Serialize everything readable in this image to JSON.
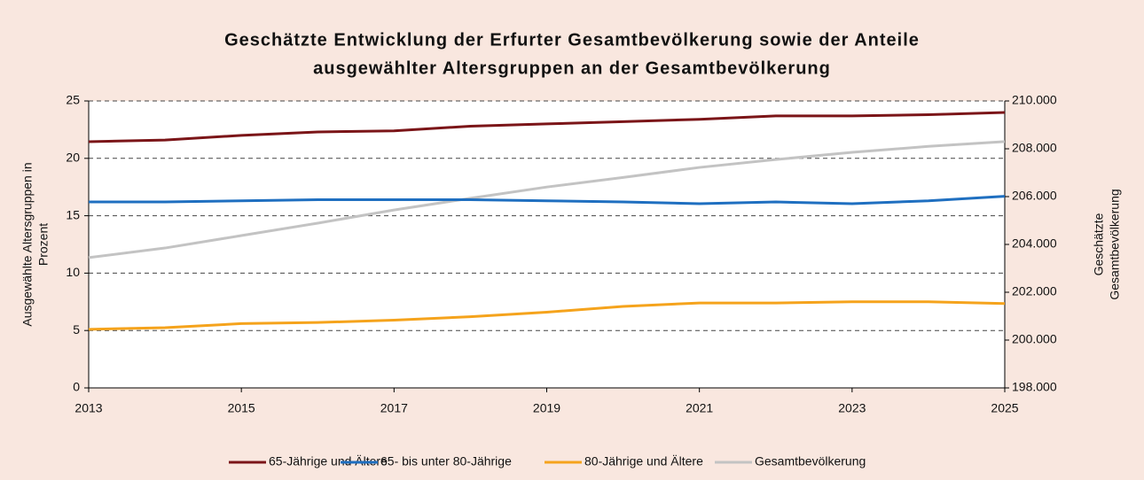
{
  "chart_data": {
    "type": "line",
    "title": [
      "Geschätzte Entwicklung der Erfurter Gesamtbevölkerung sowie der Anteile",
      "ausgewählter Altersgruppen an der Gesamtbevölkerung"
    ],
    "ylabel": [
      "Ausgewählte Altersgruppen in",
      "Prozent"
    ],
    "y2label": [
      "Geschätzte",
      "Gesamtbevölkerung"
    ],
    "x": [
      2013,
      2014,
      2015,
      2016,
      2017,
      2018,
      2019,
      2020,
      2021,
      2022,
      2023,
      2024,
      2025
    ],
    "xlim": [
      2013,
      2025
    ],
    "xticks": [
      2013,
      2015,
      2017,
      2019,
      2021,
      2023,
      2025
    ],
    "ylim": [
      0,
      25
    ],
    "yticks": [
      0,
      5,
      10,
      15,
      20,
      25
    ],
    "y2lim": [
      198000,
      210000
    ],
    "y2ticks": [
      {
        "value": 198000,
        "label": "198.000"
      },
      {
        "value": 200000,
        "label": "200.000"
      },
      {
        "value": 202000,
        "label": "202.000"
      },
      {
        "value": 204000,
        "label": "204.000"
      },
      {
        "value": 206000,
        "label": "206.000"
      },
      {
        "value": 208000,
        "label": "208.000"
      },
      {
        "value": 210000,
        "label": "210.000"
      }
    ],
    "grid": true,
    "legend": "bottom",
    "series": [
      {
        "name": "65-Jährige und Ältere",
        "color": "#7b1518",
        "values": [
          21.45,
          21.6,
          22.0,
          22.3,
          22.4,
          22.8,
          23.0,
          23.2,
          23.4,
          23.7,
          23.7,
          23.8,
          24.0
        ]
      },
      {
        "name": "65- bis unter 80-Jährige",
        "color": "#1f6fc0",
        "values": [
          16.2,
          16.2,
          16.3,
          16.4,
          16.4,
          16.4,
          16.3,
          16.2,
          16.05,
          16.2,
          16.05,
          16.3,
          16.7
        ]
      },
      {
        "name": "80-Jährige und Ältere",
        "color": "#f5a31c",
        "values": [
          5.1,
          5.25,
          5.6,
          5.7,
          5.9,
          6.2,
          6.6,
          7.1,
          7.4,
          7.4,
          7.5,
          7.5,
          7.35
        ]
      },
      {
        "name": "Gesamtbevölkerung",
        "color": "#c3c3c3",
        "axis": "y2",
        "values": [
          203450,
          203850,
          204370,
          204890,
          205440,
          205930,
          206400,
          206800,
          207220,
          207550,
          207850,
          208100,
          208300
        ]
      }
    ]
  }
}
